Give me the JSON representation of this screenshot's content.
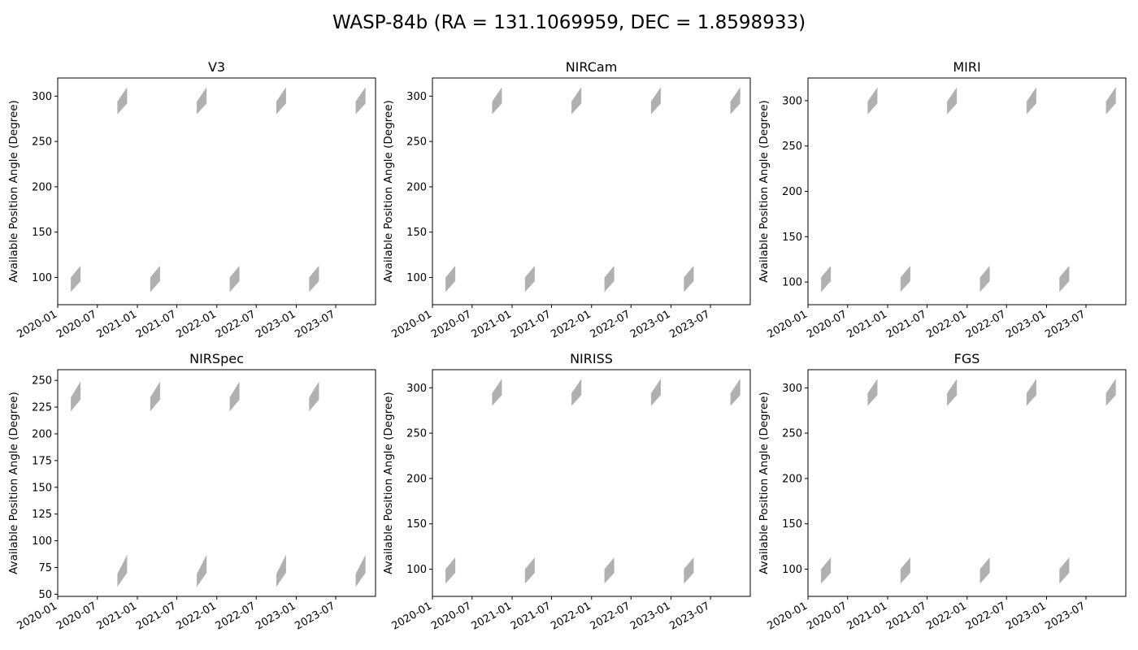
{
  "figure": {
    "title": "WASP-84b (RA = 131.1069959, DEC = 1.8598933)",
    "fill_color": "#b0b0b0"
  },
  "chart_data": [
    {
      "type": "area",
      "title": "V3",
      "xlabel": "",
      "ylabel": "Available Position Angle (Degree)",
      "xlim": [
        "2020-01-01",
        "2023-12-31"
      ],
      "ylim": [
        70,
        320
      ],
      "x_ticks": [
        "2020-01",
        "2020-07",
        "2021-01",
        "2021-07",
        "2022-01",
        "2022-07",
        "2023-01",
        "2023-07"
      ],
      "y_ticks": [
        100,
        150,
        200,
        250,
        300
      ],
      "windows": [
        {
          "start": "2020-03-01",
          "end": "2020-04-15",
          "pa_min_start": 84,
          "pa_max_start": 100,
          "pa_min_end": 96,
          "pa_max_end": 113
        },
        {
          "start": "2020-10-01",
          "end": "2020-11-15",
          "pa_min_start": 280,
          "pa_max_start": 294,
          "pa_min_end": 292,
          "pa_max_end": 310
        },
        {
          "start": "2021-03-01",
          "end": "2021-04-15",
          "pa_min_start": 84,
          "pa_max_start": 100,
          "pa_min_end": 96,
          "pa_max_end": 113
        },
        {
          "start": "2021-10-01",
          "end": "2021-11-15",
          "pa_min_start": 280,
          "pa_max_start": 294,
          "pa_min_end": 292,
          "pa_max_end": 310
        },
        {
          "start": "2022-03-01",
          "end": "2022-04-15",
          "pa_min_start": 84,
          "pa_max_start": 100,
          "pa_min_end": 96,
          "pa_max_end": 113
        },
        {
          "start": "2022-10-01",
          "end": "2022-11-15",
          "pa_min_start": 280,
          "pa_max_start": 294,
          "pa_min_end": 292,
          "pa_max_end": 310
        },
        {
          "start": "2023-03-01",
          "end": "2023-04-15",
          "pa_min_start": 84,
          "pa_max_start": 100,
          "pa_min_end": 96,
          "pa_max_end": 113
        },
        {
          "start": "2023-10-01",
          "end": "2023-11-15",
          "pa_min_start": 280,
          "pa_max_start": 294,
          "pa_min_end": 292,
          "pa_max_end": 310
        }
      ]
    },
    {
      "type": "area",
      "title": "NIRCam",
      "xlabel": "",
      "ylabel": "Available Position Angle (Degree)",
      "xlim": [
        "2020-01-01",
        "2023-12-31"
      ],
      "ylim": [
        70,
        320
      ],
      "x_ticks": [
        "2020-01",
        "2020-07",
        "2021-01",
        "2021-07",
        "2022-01",
        "2022-07",
        "2023-01",
        "2023-07"
      ],
      "y_ticks": [
        100,
        150,
        200,
        250,
        300
      ],
      "windows": [
        {
          "start": "2020-03-01",
          "end": "2020-04-15",
          "pa_min_start": 84,
          "pa_max_start": 100,
          "pa_min_end": 96,
          "pa_max_end": 113
        },
        {
          "start": "2020-10-01",
          "end": "2020-11-15",
          "pa_min_start": 280,
          "pa_max_start": 294,
          "pa_min_end": 292,
          "pa_max_end": 310
        },
        {
          "start": "2021-03-01",
          "end": "2021-04-15",
          "pa_min_start": 84,
          "pa_max_start": 100,
          "pa_min_end": 96,
          "pa_max_end": 113
        },
        {
          "start": "2021-10-01",
          "end": "2021-11-15",
          "pa_min_start": 280,
          "pa_max_start": 294,
          "pa_min_end": 292,
          "pa_max_end": 310
        },
        {
          "start": "2022-03-01",
          "end": "2022-04-15",
          "pa_min_start": 84,
          "pa_max_start": 100,
          "pa_min_end": 96,
          "pa_max_end": 113
        },
        {
          "start": "2022-10-01",
          "end": "2022-11-15",
          "pa_min_start": 280,
          "pa_max_start": 294,
          "pa_min_end": 292,
          "pa_max_end": 310
        },
        {
          "start": "2023-03-01",
          "end": "2023-04-15",
          "pa_min_start": 84,
          "pa_max_start": 100,
          "pa_min_end": 96,
          "pa_max_end": 113
        },
        {
          "start": "2023-10-01",
          "end": "2023-11-15",
          "pa_min_start": 280,
          "pa_max_start": 294,
          "pa_min_end": 292,
          "pa_max_end": 310
        }
      ]
    },
    {
      "type": "area",
      "title": "MIRI",
      "xlabel": "",
      "ylabel": "Available Position Angle (Degree)",
      "xlim": [
        "2020-01-01",
        "2023-12-31"
      ],
      "ylim": [
        75,
        325
      ],
      "x_ticks": [
        "2020-01",
        "2020-07",
        "2021-01",
        "2021-07",
        "2022-01",
        "2022-07",
        "2023-01",
        "2023-07"
      ],
      "y_ticks": [
        100,
        150,
        200,
        250,
        300
      ],
      "windows": [
        {
          "start": "2020-03-01",
          "end": "2020-04-15",
          "pa_min_start": 89,
          "pa_max_start": 105,
          "pa_min_end": 101,
          "pa_max_end": 118
        },
        {
          "start": "2020-10-01",
          "end": "2020-11-15",
          "pa_min_start": 285,
          "pa_max_start": 299,
          "pa_min_end": 297,
          "pa_max_end": 315
        },
        {
          "start": "2021-03-01",
          "end": "2021-04-15",
          "pa_min_start": 89,
          "pa_max_start": 105,
          "pa_min_end": 101,
          "pa_max_end": 118
        },
        {
          "start": "2021-10-01",
          "end": "2021-11-15",
          "pa_min_start": 285,
          "pa_max_start": 299,
          "pa_min_end": 297,
          "pa_max_end": 315
        },
        {
          "start": "2022-03-01",
          "end": "2022-04-15",
          "pa_min_start": 89,
          "pa_max_start": 105,
          "pa_min_end": 101,
          "pa_max_end": 118
        },
        {
          "start": "2022-10-01",
          "end": "2022-11-15",
          "pa_min_start": 285,
          "pa_max_start": 299,
          "pa_min_end": 297,
          "pa_max_end": 315
        },
        {
          "start": "2023-03-01",
          "end": "2023-04-15",
          "pa_min_start": 89,
          "pa_max_start": 105,
          "pa_min_end": 101,
          "pa_max_end": 118
        },
        {
          "start": "2023-10-01",
          "end": "2023-11-15",
          "pa_min_start": 285,
          "pa_max_start": 299,
          "pa_min_end": 297,
          "pa_max_end": 315
        }
      ]
    },
    {
      "type": "area",
      "title": "NIRSpec",
      "xlabel": "",
      "ylabel": "Available Position Angle (Degree)",
      "xlim": [
        "2020-01-01",
        "2023-12-31"
      ],
      "ylim": [
        48,
        260
      ],
      "x_ticks": [
        "2020-01",
        "2020-07",
        "2021-01",
        "2021-07",
        "2022-01",
        "2022-07",
        "2023-01",
        "2023-07"
      ],
      "y_ticks": [
        50,
        75,
        100,
        125,
        150,
        175,
        200,
        225,
        250
      ],
      "windows": [
        {
          "start": "2020-03-01",
          "end": "2020-04-15",
          "pa_min_start": 221,
          "pa_max_start": 234,
          "pa_min_end": 232,
          "pa_max_end": 249
        },
        {
          "start": "2020-10-01",
          "end": "2020-11-15",
          "pa_min_start": 57,
          "pa_max_start": 69,
          "pa_min_end": 70,
          "pa_max_end": 87
        },
        {
          "start": "2021-03-01",
          "end": "2021-04-15",
          "pa_min_start": 221,
          "pa_max_start": 234,
          "pa_min_end": 232,
          "pa_max_end": 249
        },
        {
          "start": "2021-10-01",
          "end": "2021-11-15",
          "pa_min_start": 57,
          "pa_max_start": 69,
          "pa_min_end": 70,
          "pa_max_end": 87
        },
        {
          "start": "2022-03-01",
          "end": "2022-04-15",
          "pa_min_start": 221,
          "pa_max_start": 234,
          "pa_min_end": 232,
          "pa_max_end": 249
        },
        {
          "start": "2022-10-01",
          "end": "2022-11-15",
          "pa_min_start": 57,
          "pa_max_start": 69,
          "pa_min_end": 70,
          "pa_max_end": 87
        },
        {
          "start": "2023-03-01",
          "end": "2023-04-15",
          "pa_min_start": 221,
          "pa_max_start": 234,
          "pa_min_end": 232,
          "pa_max_end": 249
        },
        {
          "start": "2023-10-01",
          "end": "2023-11-15",
          "pa_min_start": 57,
          "pa_max_start": 69,
          "pa_min_end": 70,
          "pa_max_end": 87
        }
      ]
    },
    {
      "type": "area",
      "title": "NIRISS",
      "xlabel": "",
      "ylabel": "Available Position Angle (Degree)",
      "xlim": [
        "2020-01-01",
        "2023-12-31"
      ],
      "ylim": [
        70,
        320
      ],
      "x_ticks": [
        "2020-01",
        "2020-07",
        "2021-01",
        "2021-07",
        "2022-01",
        "2022-07",
        "2023-01",
        "2023-07"
      ],
      "y_ticks": [
        100,
        150,
        200,
        250,
        300
      ],
      "windows": [
        {
          "start": "2020-03-01",
          "end": "2020-04-15",
          "pa_min_start": 84,
          "pa_max_start": 100,
          "pa_min_end": 96,
          "pa_max_end": 113
        },
        {
          "start": "2020-10-01",
          "end": "2020-11-15",
          "pa_min_start": 280,
          "pa_max_start": 294,
          "pa_min_end": 292,
          "pa_max_end": 310
        },
        {
          "start": "2021-03-01",
          "end": "2021-04-15",
          "pa_min_start": 84,
          "pa_max_start": 100,
          "pa_min_end": 96,
          "pa_max_end": 113
        },
        {
          "start": "2021-10-01",
          "end": "2021-11-15",
          "pa_min_start": 280,
          "pa_max_start": 294,
          "pa_min_end": 292,
          "pa_max_end": 310
        },
        {
          "start": "2022-03-01",
          "end": "2022-04-15",
          "pa_min_start": 84,
          "pa_max_start": 100,
          "pa_min_end": 96,
          "pa_max_end": 113
        },
        {
          "start": "2022-10-01",
          "end": "2022-11-15",
          "pa_min_start": 280,
          "pa_max_start": 294,
          "pa_min_end": 292,
          "pa_max_end": 310
        },
        {
          "start": "2023-03-01",
          "end": "2023-04-15",
          "pa_min_start": 84,
          "pa_max_start": 100,
          "pa_min_end": 96,
          "pa_max_end": 113
        },
        {
          "start": "2023-10-01",
          "end": "2023-11-15",
          "pa_min_start": 280,
          "pa_max_start": 294,
          "pa_min_end": 292,
          "pa_max_end": 310
        }
      ]
    },
    {
      "type": "area",
      "title": "FGS",
      "xlabel": "",
      "ylabel": "Available Position Angle (Degree)",
      "xlim": [
        "2020-01-01",
        "2023-12-31"
      ],
      "ylim": [
        70,
        320
      ],
      "x_ticks": [
        "2020-01",
        "2020-07",
        "2021-01",
        "2021-07",
        "2022-01",
        "2022-07",
        "2023-01",
        "2023-07"
      ],
      "y_ticks": [
        100,
        150,
        200,
        250,
        300
      ],
      "windows": [
        {
          "start": "2020-03-01",
          "end": "2020-04-15",
          "pa_min_start": 84,
          "pa_max_start": 100,
          "pa_min_end": 96,
          "pa_max_end": 113
        },
        {
          "start": "2020-10-01",
          "end": "2020-11-15",
          "pa_min_start": 280,
          "pa_max_start": 294,
          "pa_min_end": 292,
          "pa_max_end": 310
        },
        {
          "start": "2021-03-01",
          "end": "2021-04-15",
          "pa_min_start": 84,
          "pa_max_start": 100,
          "pa_min_end": 96,
          "pa_max_end": 113
        },
        {
          "start": "2021-10-01",
          "end": "2021-11-15",
          "pa_min_start": 280,
          "pa_max_start": 294,
          "pa_min_end": 292,
          "pa_max_end": 310
        },
        {
          "start": "2022-03-01",
          "end": "2022-04-15",
          "pa_min_start": 84,
          "pa_max_start": 100,
          "pa_min_end": 96,
          "pa_max_end": 113
        },
        {
          "start": "2022-10-01",
          "end": "2022-11-15",
          "pa_min_start": 280,
          "pa_max_start": 294,
          "pa_min_end": 292,
          "pa_max_end": 310
        },
        {
          "start": "2023-03-01",
          "end": "2023-04-15",
          "pa_min_start": 84,
          "pa_max_start": 100,
          "pa_min_end": 96,
          "pa_max_end": 113
        },
        {
          "start": "2023-10-01",
          "end": "2023-11-15",
          "pa_min_start": 280,
          "pa_max_start": 294,
          "pa_min_end": 292,
          "pa_max_end": 310
        }
      ]
    }
  ]
}
